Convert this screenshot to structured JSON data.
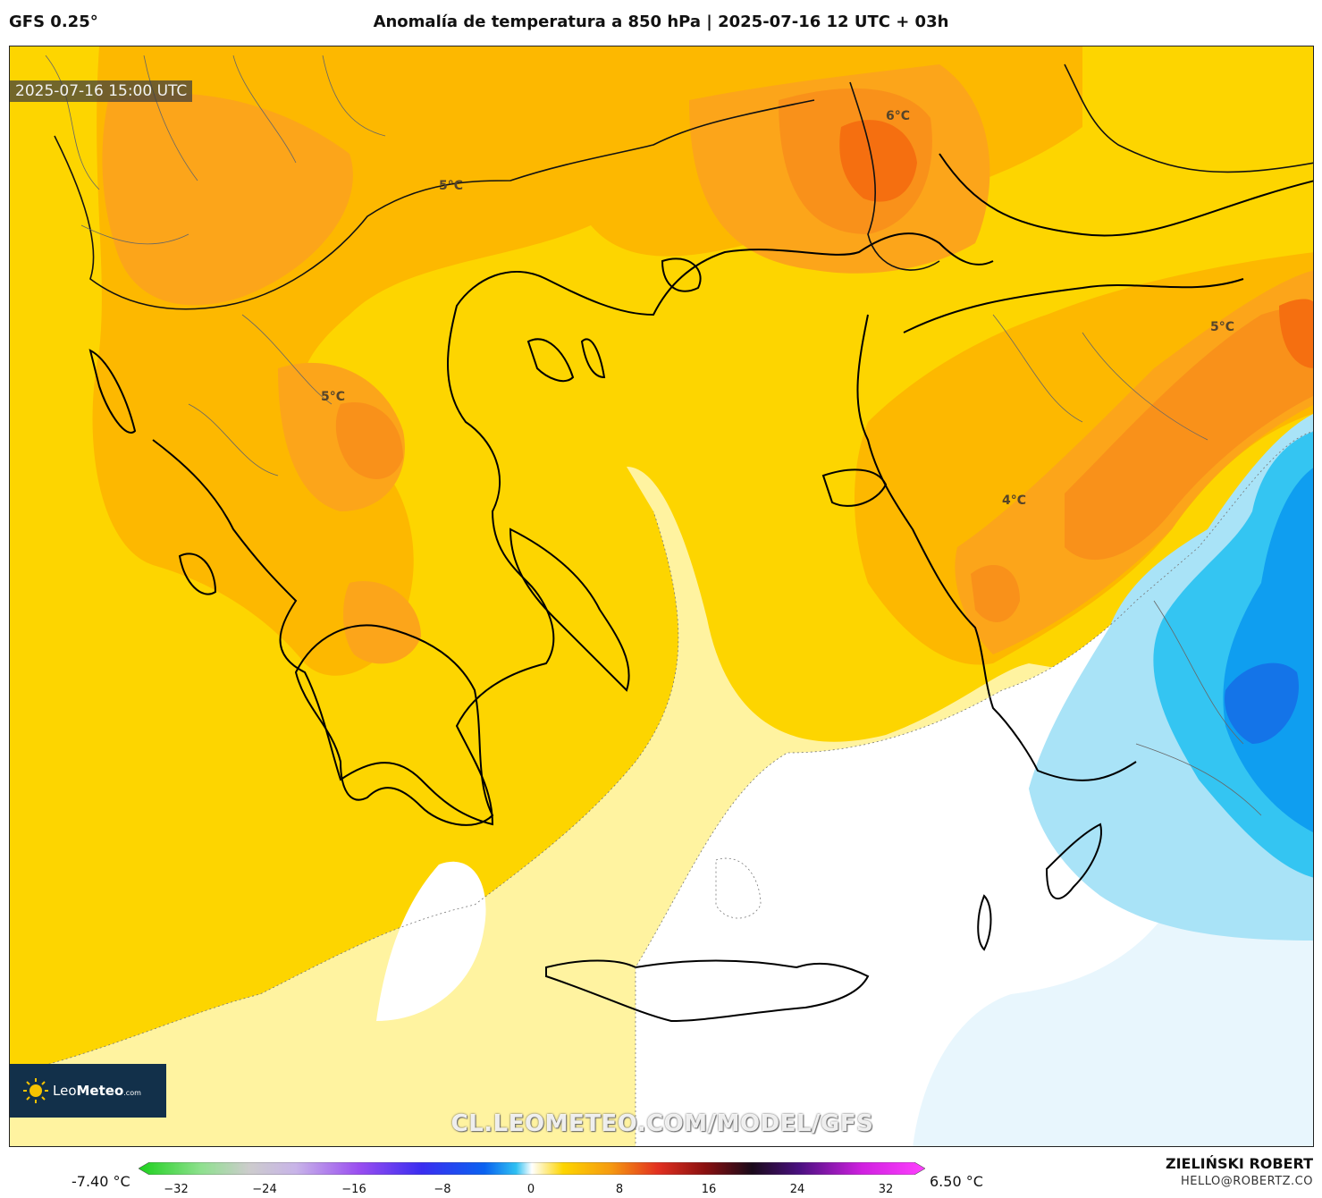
{
  "header": {
    "model": "GFS 0.25°",
    "title": "Anomalía de temperatura a 850 hPa | 2025-07-16 12 UTC + 03h"
  },
  "map": {
    "valid_time": "2025-07-16 15:00 UTC",
    "contour_labels": [
      "6°C",
      "5°C",
      "5°C",
      "5°C",
      "4°C"
    ],
    "logo": {
      "prefix": "Leo",
      "bold": "Meteo",
      "suffix": ".com"
    },
    "watermark": "CL.LEOMETEO.COM/MODEL/GFS",
    "colors": {
      "base_yellow": "#fdd500",
      "light_yellow": "#fff3a0",
      "orange_3": "#fdb800",
      "orange_4": "#fca51a",
      "orange_5": "#f9911a",
      "orange_6": "#f56f10",
      "white": "#ffffff",
      "very_light_blue": "#e8f6fd",
      "light_blue": "#a9e3f7",
      "sky_blue": "#34c5f2",
      "blue": "#0f9ef0",
      "deep_blue": "#1474e8"
    }
  },
  "colorbar": {
    "min_label": "-7.40 °C",
    "max_label": "6.50 °C",
    "ticks": [
      "−32",
      "−24",
      "−16",
      "−8",
      "0",
      "8",
      "16",
      "24",
      "32"
    ]
  },
  "credits": {
    "author": "ZIELIŃSKI ROBERT",
    "email": "HELLO@ROBERTZ.CO"
  }
}
